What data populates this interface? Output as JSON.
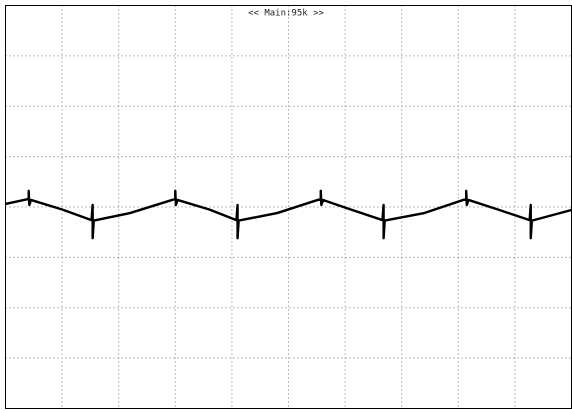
{
  "chart_data": {
    "type": "line",
    "title": "<< Main:95k >>",
    "xlim": [
      0,
      10
    ],
    "ylim": [
      -4,
      4
    ],
    "xticks": [
      0,
      1,
      2,
      3,
      4,
      5,
      6,
      7,
      8,
      9,
      10
    ],
    "yticks": [
      -4,
      -3,
      -2,
      -1,
      0,
      1,
      2,
      3,
      4
    ],
    "grid": true,
    "series": [
      {
        "color": "#000000",
        "x": [
          0,
          0.41,
          0.41,
          0.42,
          0.45,
          1.0,
          1.52,
          1.54,
          1.54,
          1.56,
          2.2,
          3.0,
          3.0,
          3.01,
          3.04,
          3.6,
          4.08,
          4.1,
          4.1,
          4.12,
          4.8,
          5.57,
          5.57,
          5.58,
          5.61,
          6.1,
          6.66,
          6.68,
          6.68,
          6.7,
          7.4,
          8.14,
          8.14,
          8.15,
          8.18,
          8.7,
          9.26,
          9.28,
          9.28,
          9.3,
          10
        ],
        "values": [
          0.06,
          0.16,
          0.32,
          0.04,
          0.14,
          -0.05,
          -0.26,
          0.04,
          -0.62,
          -0.27,
          -0.12,
          0.16,
          0.32,
          0.04,
          0.14,
          -0.05,
          -0.26,
          0.04,
          -0.62,
          -0.27,
          -0.12,
          0.16,
          0.32,
          0.04,
          0.14,
          -0.05,
          -0.26,
          0.04,
          -0.62,
          -0.27,
          -0.12,
          0.16,
          0.32,
          0.04,
          0.14,
          -0.05,
          -0.26,
          0.04,
          -0.62,
          -0.27,
          -0.06
        ]
      }
    ]
  }
}
